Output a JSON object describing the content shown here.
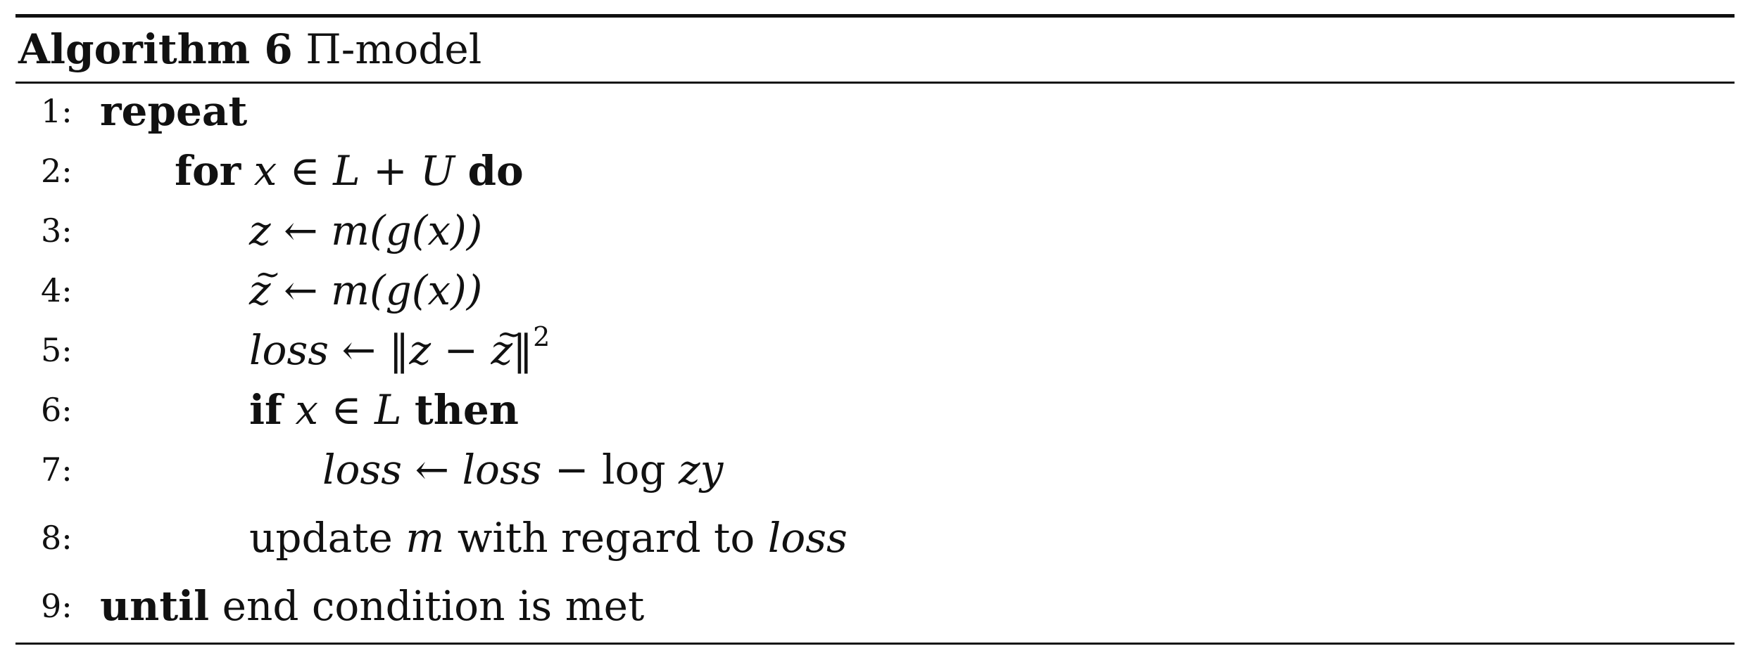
{
  "caption": {
    "label": "Algorithm 6",
    "title": "Π-model"
  },
  "lines": [
    {
      "num": "1:",
      "parts": {
        "kw1": "repeat"
      }
    },
    {
      "num": "2:",
      "parts": {
        "kw1": "for",
        "math1": "x ∈ L + U",
        "kw2": "do"
      }
    },
    {
      "num": "3:",
      "parts": {
        "lhs": "z",
        "arrow": "←",
        "rhs": "m(g(x))"
      }
    },
    {
      "num": "4:",
      "parts": {
        "lhs_base": "z",
        "lhs_tilde": "~",
        "arrow": "←",
        "rhs": "m(g(x))"
      }
    },
    {
      "num": "5:",
      "parts": {
        "lhs": "loss",
        "arrow": "←",
        "norm_open": "‖",
        "z": "z",
        "minus": " − ",
        "zt_base": "z",
        "zt_tilde": "~",
        "norm_close": "‖",
        "exp": "2"
      }
    },
    {
      "num": "6:",
      "parts": {
        "kw1": "if",
        "math1": "x ∈ L",
        "kw2": "then"
      }
    },
    {
      "num": "7:",
      "parts": {
        "lhs": "loss",
        "arrow": "←",
        "rhs1": "loss",
        "minus": " − ",
        "log": "log",
        "rhs2": "zy"
      }
    },
    {
      "num": "8:",
      "parts": {
        "t1": "update",
        "m": "m",
        "t2": "with regard to",
        "loss": "loss"
      }
    },
    {
      "num": "9:",
      "parts": {
        "kw1": "until",
        "t1": "end condition is met"
      }
    }
  ]
}
